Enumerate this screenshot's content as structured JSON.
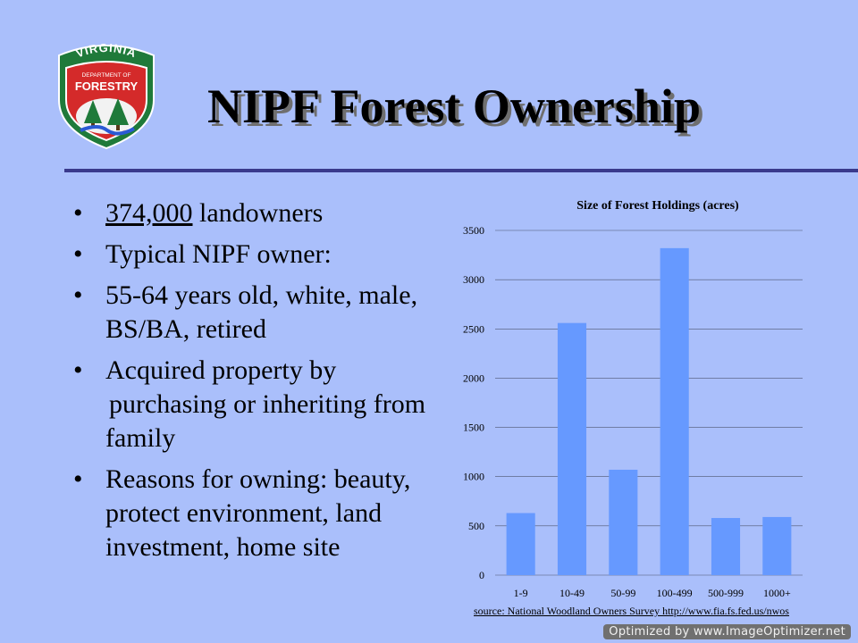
{
  "logo": {
    "top_text": "VIRGINIA",
    "dept_text": "DEPARTMENT OF",
    "main_text": "FORESTRY"
  },
  "title": "NIPF Forest Ownership",
  "bullets": [
    {
      "parts": [
        {
          "text": "374,000",
          "underline": true
        },
        {
          "text": " landowners"
        }
      ]
    },
    {
      "parts": [
        {
          "text": "Typical NIPF owner:"
        }
      ]
    },
    {
      "parts": [
        {
          "text": "55-64 years old, white, male, BS/BA, retired"
        }
      ]
    },
    {
      "parts": [
        {
          "text": "Acquired property by"
        }
      ]
    },
    {
      "continuation": true,
      "parts": [
        {
          "text": " purchasing or inheriting from family"
        }
      ]
    },
    {
      "parts": [
        {
          "text": "Reasons for owning: beauty, protect environment, land investment, home site"
        }
      ]
    }
  ],
  "chart_data": {
    "type": "bar",
    "title": "Size of Forest Holdings (acres)",
    "categories": [
      "1-9",
      "10-49",
      "50-99",
      "100-499",
      "500-999",
      "1000+"
    ],
    "values": [
      630,
      2560,
      1070,
      3320,
      580,
      590
    ],
    "ylim": [
      0,
      3500
    ],
    "yticks": [
      0,
      500,
      1000,
      1500,
      2000,
      2500,
      3000,
      3500
    ],
    "grid": true,
    "bar_color": "#6699ff"
  },
  "source": "source: National Woodland Owners Survey  http://www.fia.fs.fed.us/nwos",
  "watermark": "Optimized by www.ImageOptimizer.net",
  "colors": {
    "background": "#aabffb",
    "rule": "#3a3a8c",
    "logo_green": "#1f7a3a",
    "logo_red": "#d42a2a"
  }
}
